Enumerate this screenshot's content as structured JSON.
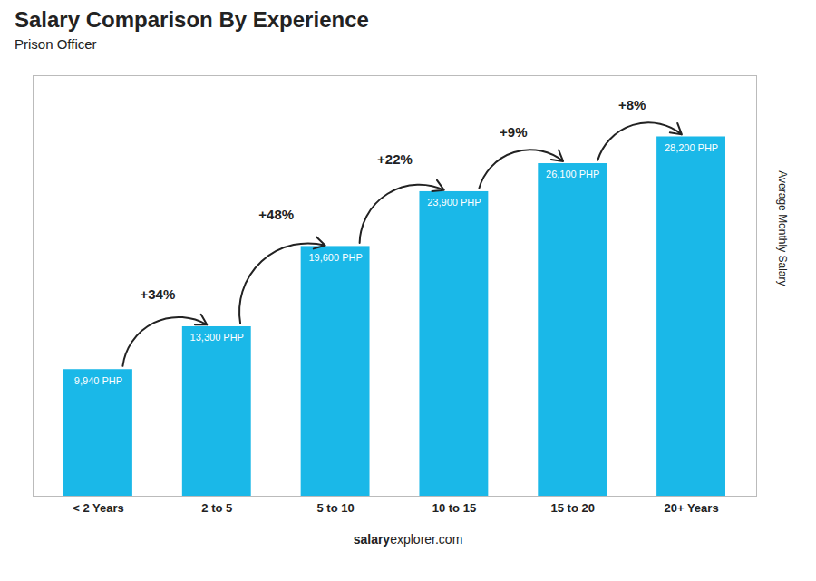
{
  "chart_data": {
    "type": "bar",
    "title": "Salary Comparison By Experience",
    "subtitle": "Prison Officer",
    "ylabel": "Average Monthly Salary",
    "categories": [
      "< 2 Years",
      "2 to 5",
      "5 to 10",
      "10 to 15",
      "15 to 20",
      "20+ Years"
    ],
    "values": [
      9940,
      13300,
      19600,
      23900,
      26100,
      28200
    ],
    "value_labels": [
      "9,940 PHP",
      "13,300 PHP",
      "19,600 PHP",
      "23,900 PHP",
      "26,100 PHP",
      "28,200 PHP"
    ],
    "data_labels": true,
    "annotations": [
      "+34%",
      "+48%",
      "+22%",
      "+9%",
      "+8%"
    ],
    "caption": [
      "salary",
      "explorer.com"
    ],
    "color": "#1ab8e8",
    "ylim": [
      0,
      33000
    ],
    "tick_labels": "x",
    "grid": false
  }
}
